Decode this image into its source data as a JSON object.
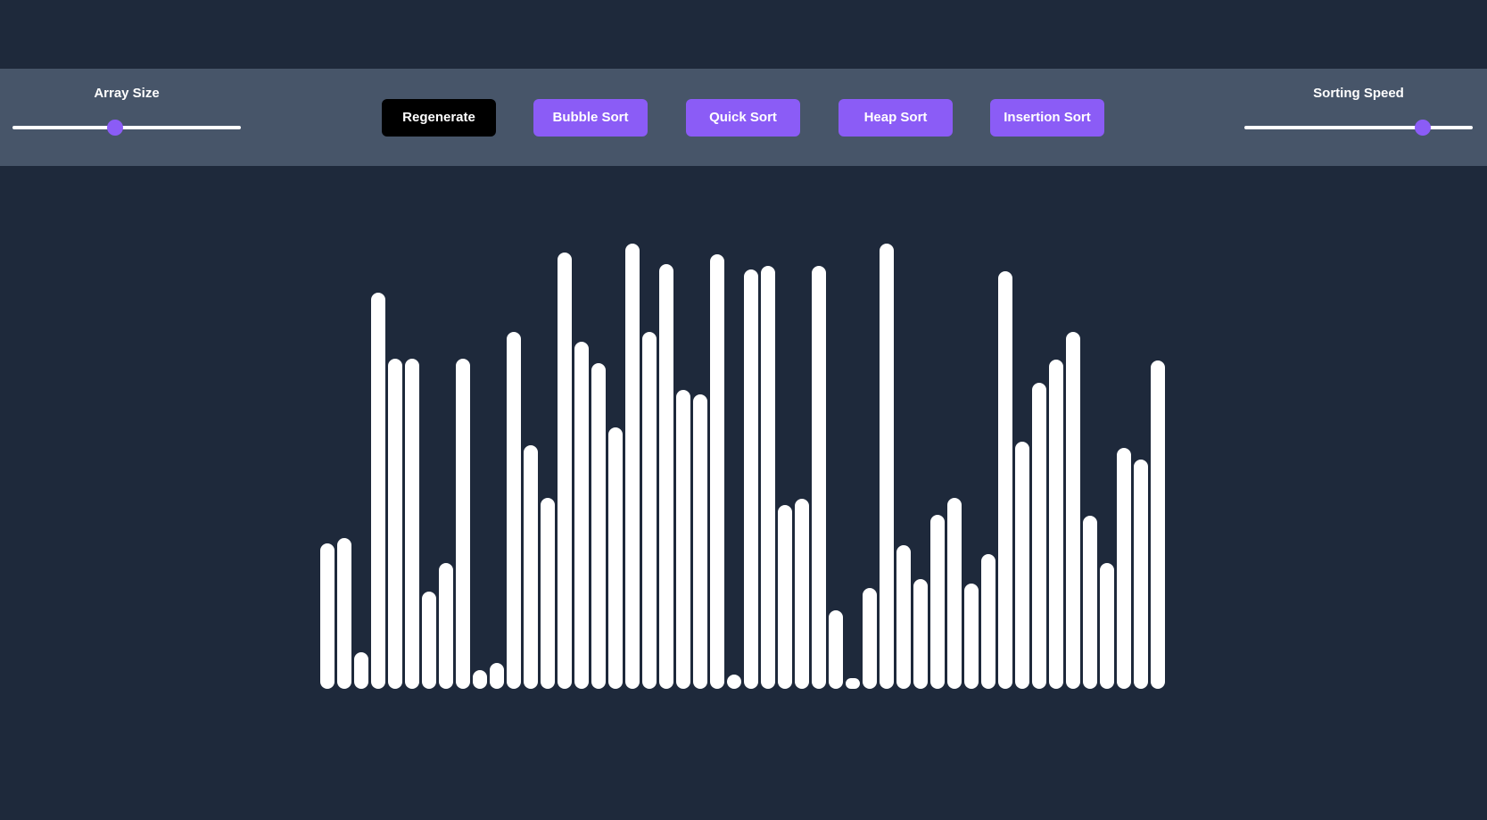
{
  "toolbar": {
    "array_size": {
      "label": "Array Size",
      "value_fraction": 0.45
    },
    "sorting_speed": {
      "label": "Sorting Speed",
      "value_fraction": 0.78
    },
    "buttons": {
      "regenerate": "Regenerate",
      "bubble_sort": "Bubble Sort",
      "quick_sort": "Quick Sort",
      "heap_sort": "Heap Sort",
      "insertion_sort": "Insertion Sort"
    }
  },
  "colors": {
    "background": "#1e293b",
    "toolbar": "#475569",
    "accent": "#8b5cf6",
    "bar": "#ffffff",
    "regenerate_button": "#000000"
  },
  "array": {
    "values": [
      163,
      169,
      41,
      444,
      370,
      370,
      109,
      141,
      370,
      21,
      29,
      400,
      273,
      214,
      489,
      389,
      365,
      293,
      499,
      400,
      476,
      335,
      330,
      487,
      16,
      470,
      474,
      206,
      213,
      474,
      88,
      12,
      113,
      499,
      161,
      123,
      195,
      214,
      118,
      151,
      468,
      277,
      343,
      369,
      400,
      194,
      141,
      270,
      257,
      368
    ]
  }
}
